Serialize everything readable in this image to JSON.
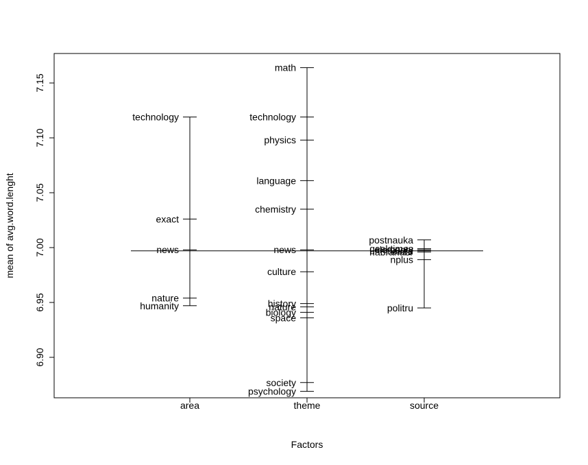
{
  "chart_data": {
    "type": "factor-means",
    "xlabel": "Factors",
    "ylabel": "mean of avg.word.lenght",
    "ylim": [
      6.87,
      7.17
    ],
    "yticks": [
      6.9,
      6.95,
      7.0,
      7.05,
      7.1,
      7.15
    ],
    "grand_mean": 6.997,
    "factors": [
      {
        "name": "area",
        "levels": [
          {
            "label": "technology",
            "value": 7.119
          },
          {
            "label": "exact",
            "value": 7.026
          },
          {
            "label": "news",
            "value": 6.998
          },
          {
            "label": "nature",
            "value": 6.954
          },
          {
            "label": "humanity",
            "value": 6.947
          }
        ]
      },
      {
        "name": "theme",
        "levels": [
          {
            "label": "math",
            "value": 7.164
          },
          {
            "label": "technology",
            "value": 7.119
          },
          {
            "label": "physics",
            "value": 7.098
          },
          {
            "label": "language",
            "value": 7.061
          },
          {
            "label": "chemistry",
            "value": 7.035
          },
          {
            "label": "news",
            "value": 6.998
          },
          {
            "label": "culture",
            "value": 6.978
          },
          {
            "label": "history",
            "value": 6.949
          },
          {
            "label": "nature",
            "value": 6.946
          },
          {
            "label": "biology",
            "value": 6.941
          },
          {
            "label": "space",
            "value": 6.936
          },
          {
            "label": "society",
            "value": 6.877
          },
          {
            "label": "psychology",
            "value": 6.869
          }
        ]
      },
      {
        "name": "source",
        "levels": [
          {
            "label": "postnauka",
            "value": 7.007
          },
          {
            "label": "geektimes",
            "value": 6.999
          },
          {
            "label": "elementy",
            "value": 6.998
          },
          {
            "label": "naked",
            "value": 6.997
          },
          {
            "label": "habrahabr",
            "value": 6.996
          },
          {
            "label": "nplus",
            "value": 6.989
          },
          {
            "label": "politru",
            "value": 6.945
          }
        ]
      }
    ]
  }
}
